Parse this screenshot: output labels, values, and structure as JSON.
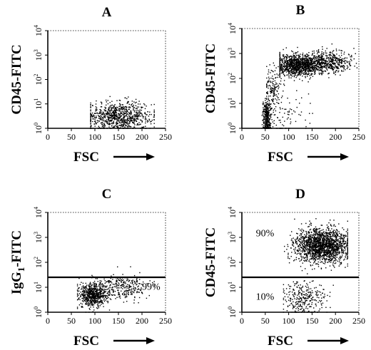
{
  "chart_data": [
    {
      "panel": "A",
      "type": "scatter",
      "title": "A",
      "xlabel": "FSC",
      "ylabel": "CD45-FITC",
      "xlim": [
        0,
        250
      ],
      "ylim_log10": [
        0,
        4
      ],
      "y_scale": "log",
      "x_ticks": [
        "0",
        "50",
        "100",
        "150",
        "200",
        "250"
      ],
      "y_ticks": [
        "10^0",
        "10^1",
        "10^2",
        "10^3",
        "10^4"
      ],
      "grid": false,
      "gate_line": null,
      "annotations": [],
      "clusters": [
        {
          "x_mean": 150,
          "x_sd": 35,
          "x_min": 90,
          "x_max": 225,
          "log10_y_mean": 0.5,
          "log10_y_sd": 0.3,
          "n": 850
        }
      ]
    },
    {
      "panel": "B",
      "type": "scatter",
      "title": "B",
      "xlabel": "FSC",
      "ylabel": "CD45-FITC",
      "xlim": [
        0,
        250
      ],
      "ylim_log10": [
        0,
        4
      ],
      "y_scale": "log",
      "x_ticks": [
        "0",
        "50",
        "100",
        "150",
        "200",
        "250"
      ],
      "y_ticks": [
        "10^0",
        "10^1",
        "10^2",
        "10^3",
        "10^4"
      ],
      "grid": false,
      "gate_line": null,
      "annotations": [],
      "clusters": [
        {
          "x_mean": 120,
          "x_sd": 25,
          "x_min": 80,
          "x_max": 170,
          "log10_y_mean": 2.55,
          "log10_y_sd": 0.22,
          "n": 1100
        },
        {
          "x_mean": 185,
          "x_sd": 25,
          "x_min": 140,
          "x_max": 245,
          "log10_y_mean": 2.65,
          "log10_y_sd": 0.22,
          "n": 450
        },
        {
          "x_mean": 52,
          "x_sd": 4,
          "x_min": 42,
          "x_max": 65,
          "log10_y_mean": 0.45,
          "log10_y_sd": 0.35,
          "n": 350
        },
        {
          "x_mean": 65,
          "x_sd": 9,
          "x_min": 52,
          "x_max": 90,
          "log10_y_mean": 1.6,
          "log10_y_sd": 0.5,
          "n": 160
        },
        {
          "x_mean": 90,
          "x_sd": 25,
          "x_min": 55,
          "x_max": 150,
          "log10_y_mean": 0.6,
          "log10_y_sd": 0.5,
          "n": 80
        }
      ]
    },
    {
      "panel": "C",
      "type": "scatter",
      "title": "C",
      "xlabel": "FSC",
      "ylabel": "IgG1-FITC",
      "xlim": [
        0,
        250
      ],
      "ylim_log10": [
        0,
        4
      ],
      "y_scale": "log",
      "x_ticks": [
        "0",
        "50",
        "100",
        "150",
        "200",
        "250"
      ],
      "y_ticks": [
        "10^0",
        "10^1",
        "10^2",
        "10^3",
        "10^4"
      ],
      "grid": false,
      "gate_line": {
        "log10_y": 1.4
      },
      "annotations": [
        {
          "text": "99%",
          "x": 200,
          "log10_y": 0.9
        }
      ],
      "clusters": [
        {
          "x_mean": 95,
          "x_sd": 15,
          "x_min": 62,
          "x_max": 130,
          "log10_y_mean": 0.7,
          "log10_y_sd": 0.25,
          "n": 650
        },
        {
          "x_mean": 155,
          "x_sd": 30,
          "x_min": 110,
          "x_max": 225,
          "log10_y_mean": 1.0,
          "log10_y_sd": 0.25,
          "n": 300
        }
      ]
    },
    {
      "panel": "D",
      "type": "scatter",
      "title": "D",
      "xlabel": "FSC",
      "ylabel": "CD45-FITC",
      "xlim": [
        0,
        250
      ],
      "ylim_log10": [
        0,
        4
      ],
      "y_scale": "log",
      "x_ticks": [
        "0",
        "50",
        "100",
        "150",
        "200",
        "250"
      ],
      "y_ticks": [
        "10^0",
        "10^1",
        "10^2",
        "10^3",
        "10^4"
      ],
      "grid": false,
      "gate_line": {
        "log10_y": 1.4
      },
      "annotations": [
        {
          "text": "90%",
          "x": 30,
          "log10_y": 3.05
        },
        {
          "text": "10%",
          "x": 30,
          "log10_y": 0.5
        }
      ],
      "clusters": [
        {
          "x_mean": 170,
          "x_sd": 28,
          "x_min": 90,
          "x_max": 225,
          "log10_y_mean": 2.7,
          "log10_y_sd": 0.35,
          "n": 1700
        },
        {
          "x_mean": 130,
          "x_sd": 25,
          "x_min": 88,
          "x_max": 210,
          "log10_y_mean": 0.55,
          "log10_y_sd": 0.35,
          "n": 300
        }
      ]
    }
  ]
}
